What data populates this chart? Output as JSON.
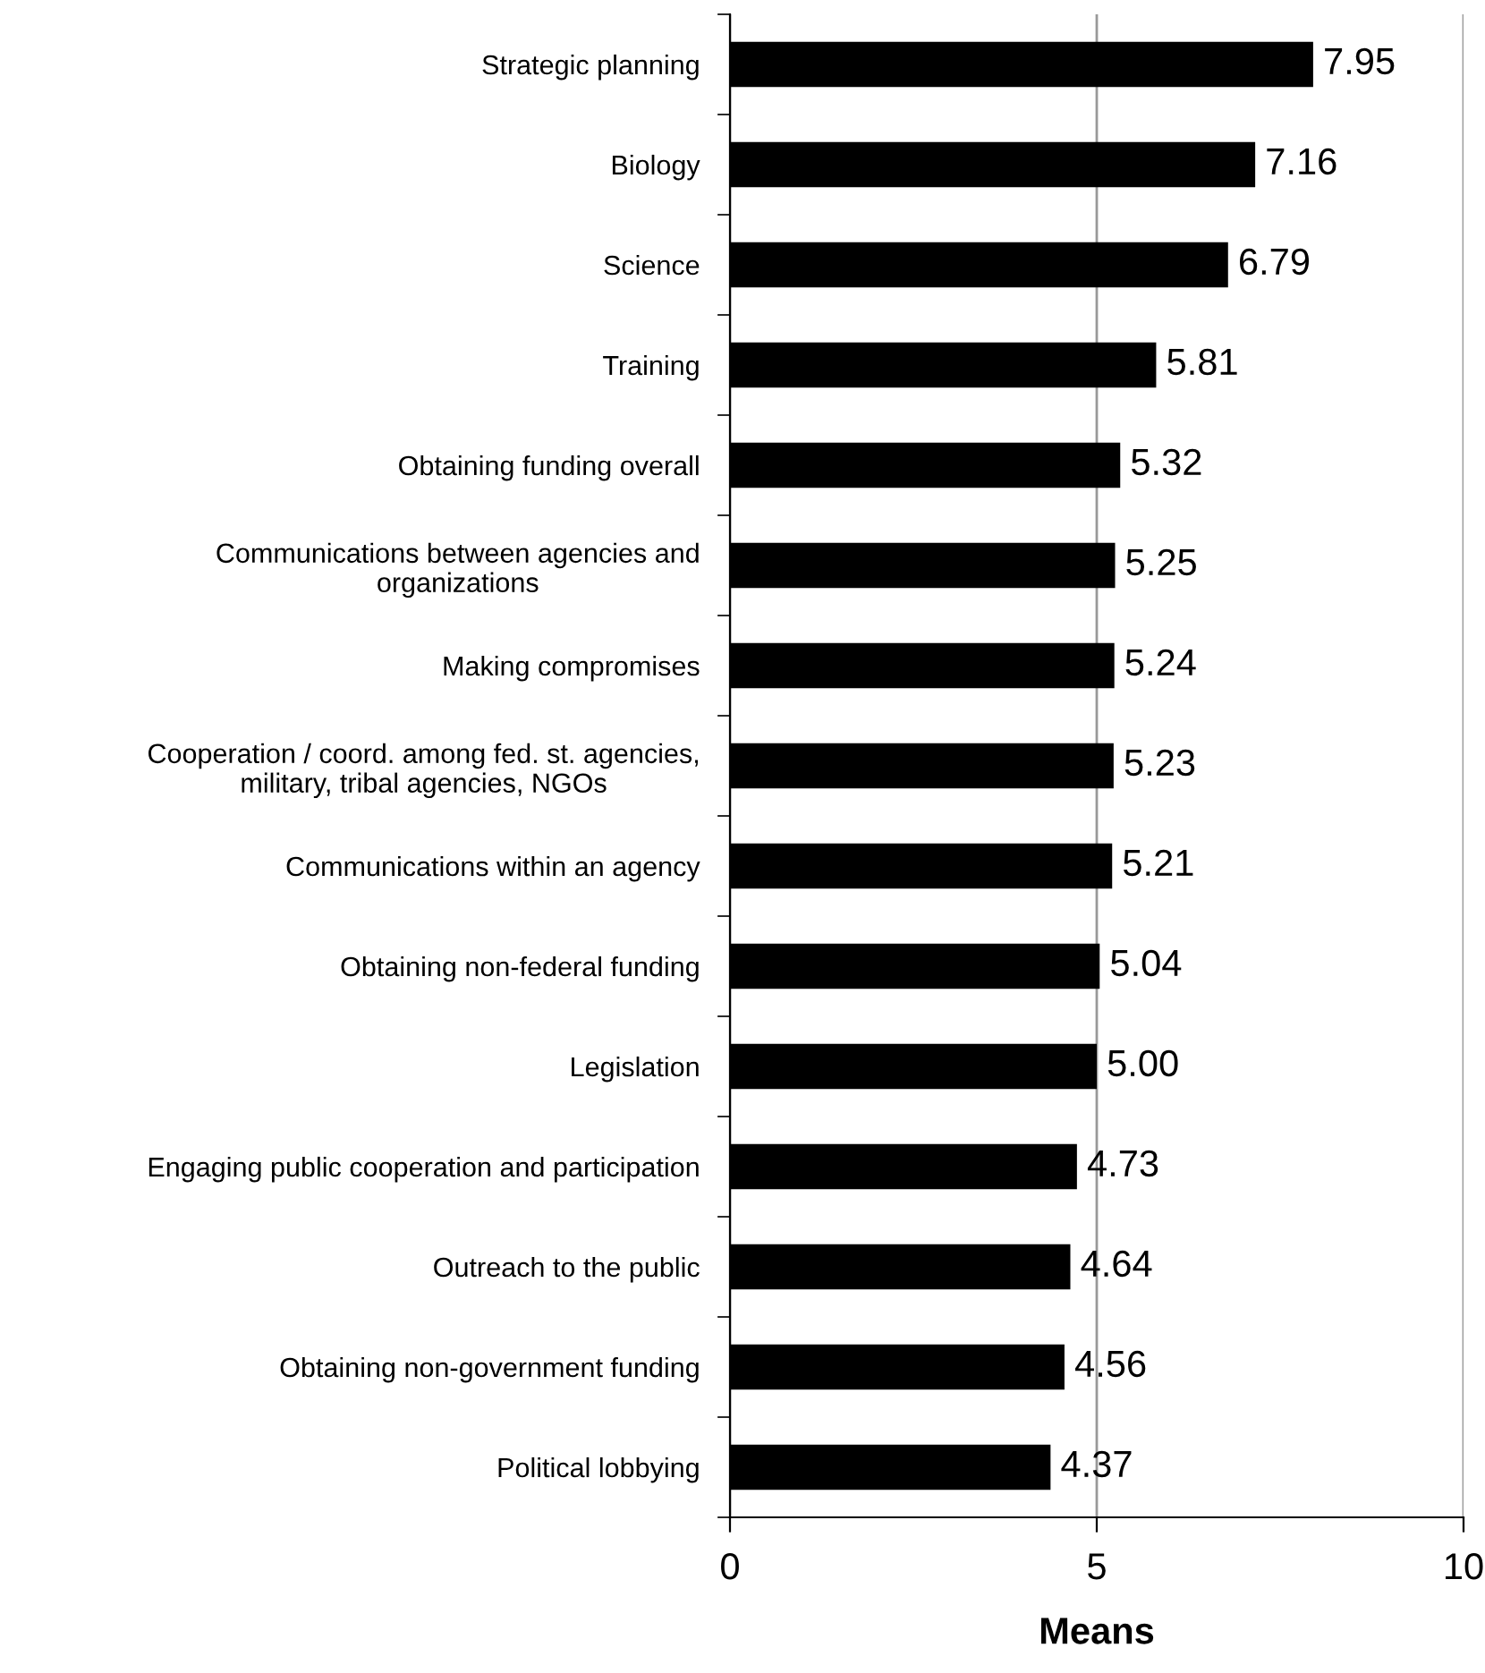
{
  "chart_data": {
    "type": "bar",
    "orientation": "horizontal",
    "xlabel": "Means",
    "categories": [
      "Strategic planning",
      "Biology",
      "Science",
      "Training",
      "Obtaining funding overall",
      "Communications between agencies and\norganizations",
      "Making compromises",
      "Cooperation / coord. among fed. st. agencies,\nmilitary, tribal agencies, NGOs",
      "Communications within an agency",
      "Obtaining non-federal funding",
      "Legislation",
      "Engaging public cooperation and participation",
      "Outreach to the public",
      "Obtaining non-government funding",
      "Political lobbying"
    ],
    "values": [
      7.95,
      7.16,
      6.79,
      5.81,
      5.32,
      5.25,
      5.24,
      5.23,
      5.21,
      5.04,
      5.0,
      4.73,
      4.64,
      4.56,
      4.37
    ],
    "value_labels": [
      "7.95",
      "7.16",
      "6.79",
      "5.81",
      "5.32",
      "5.25",
      "5.24",
      "5.23",
      "5.21",
      "5.04",
      "5.00",
      "4.73",
      "4.64",
      "4.56",
      "4.37"
    ],
    "color": "#000000",
    "xlim": [
      0,
      10
    ],
    "xticks": [
      0,
      5,
      10
    ],
    "grid": "x",
    "legend": false
  }
}
